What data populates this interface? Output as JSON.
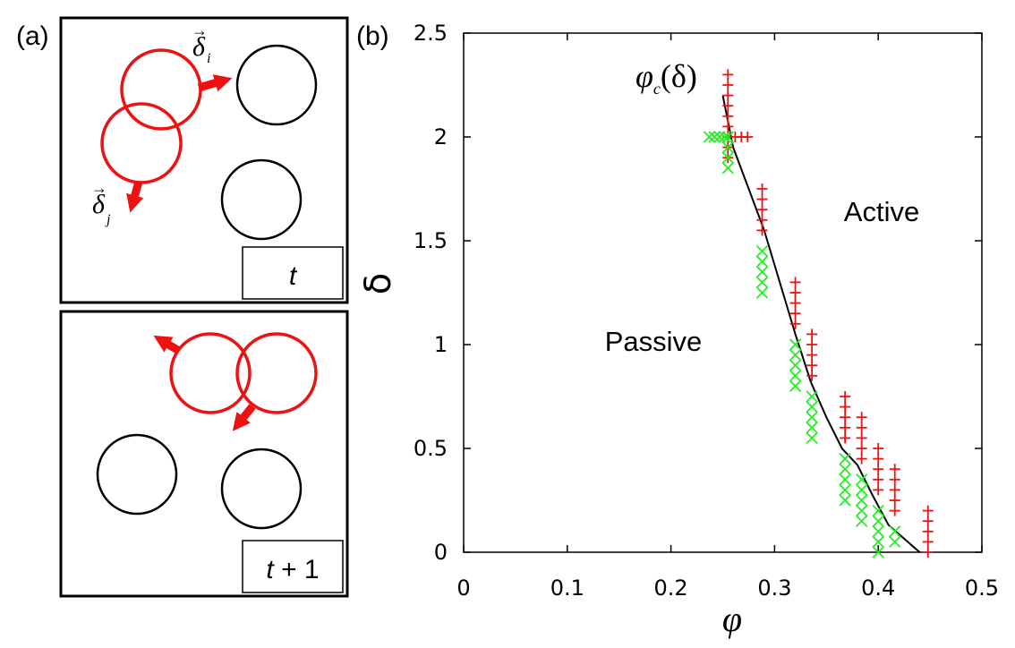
{
  "panel_a": {
    "label": "(a)",
    "frame_t": {
      "time_label": "t",
      "delta_i": "δ",
      "delta_i_sub": "i",
      "delta_j": "δ",
      "delta_j_sub": "j"
    },
    "frame_t1": {
      "time_label_italic": "t",
      "time_label_rest": " + 1"
    },
    "colors": {
      "active_particle": "#ee1111",
      "passive_particle": "#000000",
      "arrow": "#ee1111"
    }
  },
  "chart_data": {
    "label": "(b)",
    "type": "scatter",
    "xlabel": "φ",
    "ylabel": "δ",
    "xlim": [
      0,
      0.5
    ],
    "ylim": [
      0,
      2.5
    ],
    "xticks": [
      0,
      0.1,
      0.2,
      0.3,
      0.4,
      0.5
    ],
    "xtick_labels": [
      "0",
      "0.1",
      "0.2",
      "0.3",
      "0.4",
      "0.5"
    ],
    "yticks": [
      0,
      0.5,
      1,
      1.5,
      2,
      2.5
    ],
    "ytick_labels": [
      "0",
      "0.5",
      "1",
      "1.5",
      "2",
      "2.5"
    ],
    "annotations": {
      "active": "Active",
      "passive": "Passive",
      "curve_symbol": "φ",
      "curve_sub": "c",
      "curve_arg": "(δ)"
    },
    "series": [
      {
        "name": "active",
        "marker": "+",
        "color": "#ee1111",
        "points": [
          {
            "x": 0.255,
            "y": 2.3
          },
          {
            "x": 0.255,
            "y": 2.25
          },
          {
            "x": 0.255,
            "y": 2.2
          },
          {
            "x": 0.255,
            "y": 2.15
          },
          {
            "x": 0.255,
            "y": 2.1
          },
          {
            "x": 0.255,
            "y": 2.05
          },
          {
            "x": 0.255,
            "y": 2.0
          },
          {
            "x": 0.255,
            "y": 1.95
          },
          {
            "x": 0.255,
            "y": 1.9
          },
          {
            "x": 0.262,
            "y": 2.0
          },
          {
            "x": 0.268,
            "y": 2.0
          },
          {
            "x": 0.274,
            "y": 2.0
          },
          {
            "x": 0.288,
            "y": 1.75
          },
          {
            "x": 0.288,
            "y": 1.7
          },
          {
            "x": 0.288,
            "y": 1.65
          },
          {
            "x": 0.288,
            "y": 1.6
          },
          {
            "x": 0.288,
            "y": 1.55
          },
          {
            "x": 0.32,
            "y": 1.3
          },
          {
            "x": 0.32,
            "y": 1.25
          },
          {
            "x": 0.32,
            "y": 1.2
          },
          {
            "x": 0.32,
            "y": 1.15
          },
          {
            "x": 0.32,
            "y": 1.1
          },
          {
            "x": 0.336,
            "y": 1.05
          },
          {
            "x": 0.336,
            "y": 1.0
          },
          {
            "x": 0.336,
            "y": 0.95
          },
          {
            "x": 0.336,
            "y": 0.9
          },
          {
            "x": 0.336,
            "y": 0.85
          },
          {
            "x": 0.368,
            "y": 0.75
          },
          {
            "x": 0.368,
            "y": 0.7
          },
          {
            "x": 0.368,
            "y": 0.65
          },
          {
            "x": 0.368,
            "y": 0.6
          },
          {
            "x": 0.368,
            "y": 0.55
          },
          {
            "x": 0.384,
            "y": 0.65
          },
          {
            "x": 0.384,
            "y": 0.6
          },
          {
            "x": 0.384,
            "y": 0.55
          },
          {
            "x": 0.384,
            "y": 0.5
          },
          {
            "x": 0.384,
            "y": 0.45
          },
          {
            "x": 0.4,
            "y": 0.5
          },
          {
            "x": 0.4,
            "y": 0.45
          },
          {
            "x": 0.4,
            "y": 0.4
          },
          {
            "x": 0.4,
            "y": 0.35
          },
          {
            "x": 0.4,
            "y": 0.3
          },
          {
            "x": 0.416,
            "y": 0.4
          },
          {
            "x": 0.416,
            "y": 0.35
          },
          {
            "x": 0.416,
            "y": 0.3
          },
          {
            "x": 0.416,
            "y": 0.25
          },
          {
            "x": 0.416,
            "y": 0.2
          },
          {
            "x": 0.448,
            "y": 0.2
          },
          {
            "x": 0.448,
            "y": 0.15
          },
          {
            "x": 0.448,
            "y": 0.1
          },
          {
            "x": 0.448,
            "y": 0.05
          },
          {
            "x": 0.448,
            "y": 0.0
          }
        ]
      },
      {
        "name": "passive",
        "marker": "x",
        "color": "#22ee22",
        "points": [
          {
            "x": 0.237,
            "y": 2.0
          },
          {
            "x": 0.242,
            "y": 2.0
          },
          {
            "x": 0.247,
            "y": 2.0
          },
          {
            "x": 0.252,
            "y": 2.0
          },
          {
            "x": 0.255,
            "y": 2.0
          },
          {
            "x": 0.255,
            "y": 1.95
          },
          {
            "x": 0.255,
            "y": 1.9
          },
          {
            "x": 0.255,
            "y": 1.85
          },
          {
            "x": 0.288,
            "y": 1.45
          },
          {
            "x": 0.288,
            "y": 1.4
          },
          {
            "x": 0.288,
            "y": 1.35
          },
          {
            "x": 0.288,
            "y": 1.3
          },
          {
            "x": 0.288,
            "y": 1.25
          },
          {
            "x": 0.32,
            "y": 1.0
          },
          {
            "x": 0.32,
            "y": 0.95
          },
          {
            "x": 0.32,
            "y": 0.9
          },
          {
            "x": 0.32,
            "y": 0.85
          },
          {
            "x": 0.32,
            "y": 0.8
          },
          {
            "x": 0.336,
            "y": 0.75
          },
          {
            "x": 0.336,
            "y": 0.7
          },
          {
            "x": 0.336,
            "y": 0.65
          },
          {
            "x": 0.336,
            "y": 0.6
          },
          {
            "x": 0.336,
            "y": 0.55
          },
          {
            "x": 0.368,
            "y": 0.45
          },
          {
            "x": 0.368,
            "y": 0.4
          },
          {
            "x": 0.368,
            "y": 0.35
          },
          {
            "x": 0.368,
            "y": 0.3
          },
          {
            "x": 0.368,
            "y": 0.25
          },
          {
            "x": 0.384,
            "y": 0.35
          },
          {
            "x": 0.384,
            "y": 0.3
          },
          {
            "x": 0.384,
            "y": 0.25
          },
          {
            "x": 0.384,
            "y": 0.2
          },
          {
            "x": 0.384,
            "y": 0.15
          },
          {
            "x": 0.4,
            "y": 0.2
          },
          {
            "x": 0.4,
            "y": 0.15
          },
          {
            "x": 0.4,
            "y": 0.1
          },
          {
            "x": 0.4,
            "y": 0.05
          },
          {
            "x": 0.4,
            "y": 0.0
          },
          {
            "x": 0.416,
            "y": 0.1
          },
          {
            "x": 0.416,
            "y": 0.05
          }
        ]
      },
      {
        "name": "phi_c",
        "marker": "line",
        "color": "#000000",
        "points": [
          {
            "x": 0.25,
            "y": 2.2
          },
          {
            "x": 0.26,
            "y": 1.95
          },
          {
            "x": 0.275,
            "y": 1.75
          },
          {
            "x": 0.29,
            "y": 1.55
          },
          {
            "x": 0.305,
            "y": 1.3
          },
          {
            "x": 0.32,
            "y": 1.05
          },
          {
            "x": 0.335,
            "y": 0.82
          },
          {
            "x": 0.35,
            "y": 0.65
          },
          {
            "x": 0.365,
            "y": 0.5
          },
          {
            "x": 0.38,
            "y": 0.42
          },
          {
            "x": 0.395,
            "y": 0.27
          },
          {
            "x": 0.41,
            "y": 0.13
          },
          {
            "x": 0.44,
            "y": 0.0
          }
        ]
      }
    ]
  }
}
